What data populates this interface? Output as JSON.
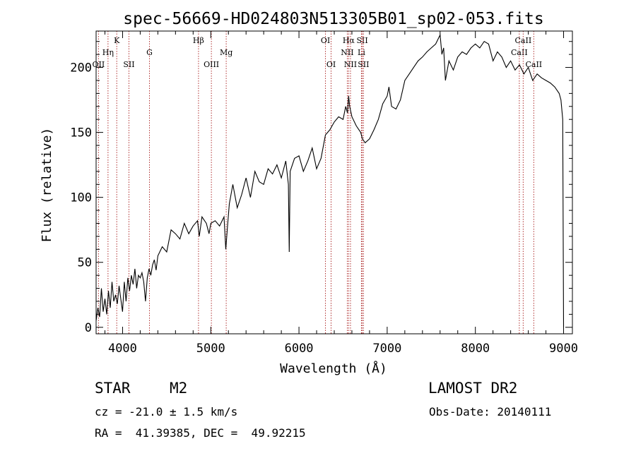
{
  "chart_data": {
    "type": "line",
    "title": "spec-56669-HD024803N513305B01_sp02-053.fits",
    "xlabel": "Wavelength (Å)",
    "ylabel": "Flux (relative)",
    "xlim": [
      3700,
      9100
    ],
    "ylim": [
      -5,
      228
    ],
    "x_ticks": [
      4000,
      5000,
      6000,
      7000,
      8000,
      9000
    ],
    "y_ticks": [
      0,
      50,
      100,
      150,
      200
    ],
    "grid": false,
    "line_color": "#000000",
    "marker_color": "#b03030",
    "spectral_lines": [
      {
        "label": "OII",
        "x": 3727,
        "row": 3
      },
      {
        "label": "Hη",
        "x": 3835,
        "row": 2
      },
      {
        "label": "K",
        "x": 3934,
        "row": 1
      },
      {
        "label": "SII",
        "x": 4072,
        "row": 3
      },
      {
        "label": "G",
        "x": 4305,
        "row": 2
      },
      {
        "label": "Hβ",
        "x": 4861,
        "row": 1
      },
      {
        "label": "OIII",
        "x": 5007,
        "row": 3
      },
      {
        "label": "Mg",
        "x": 5175,
        "row": 2
      },
      {
        "label": "OI",
        "x": 6300,
        "row": 1
      },
      {
        "label": "OI",
        "x": 6364,
        "row": 3
      },
      {
        "label": "Hα",
        "x": 6563,
        "row": 1
      },
      {
        "label": "NII",
        "x": 6548,
        "row": 2
      },
      {
        "label": "NII",
        "x": 6584,
        "row": 3
      },
      {
        "label": "SII",
        "x": 6717,
        "row": 1
      },
      {
        "label": "Li",
        "x": 6708,
        "row": 2
      },
      {
        "label": "SII",
        "x": 6731,
        "row": 3
      },
      {
        "label": "CaII",
        "x": 8498,
        "row": 2
      },
      {
        "label": "CaII",
        "x": 8542,
        "row": 1
      },
      {
        "label": "CaII",
        "x": 8662,
        "row": 3
      }
    ],
    "series": [
      {
        "x": [
          3700,
          3720,
          3740,
          3760,
          3780,
          3800,
          3820,
          3840,
          3860,
          3880,
          3900,
          3920,
          3940,
          3960,
          3980,
          4000,
          4020,
          4040,
          4060,
          4080,
          4100,
          4120,
          4140,
          4160,
          4180,
          4200,
          4220,
          4240,
          4260,
          4280,
          4300,
          4320,
          4340,
          4360,
          4380,
          4400,
          4450,
          4500,
          4550,
          4600,
          4650,
          4700,
          4750,
          4800,
          4850,
          4870,
          4900,
          4950,
          4980,
          5000,
          5050,
          5100,
          5150,
          5170,
          5190,
          5210,
          5250,
          5300,
          5350,
          5400,
          5450,
          5500,
          5550,
          5600,
          5650,
          5700,
          5750,
          5800,
          5850,
          5880,
          5890,
          5900,
          5950,
          6000,
          6050,
          6100,
          6150,
          6200,
          6250,
          6300,
          6350,
          6400,
          6450,
          6500,
          6530,
          6550,
          6563,
          6575,
          6600,
          6650,
          6700,
          6720,
          6750,
          6800,
          6850,
          6900,
          6950,
          7000,
          7020,
          7050,
          7100,
          7150,
          7200,
          7250,
          7300,
          7350,
          7400,
          7450,
          7500,
          7550,
          7600,
          7620,
          7640,
          7660,
          7700,
          7750,
          7800,
          7850,
          7900,
          7950,
          8000,
          8050,
          8100,
          8150,
          8200,
          8250,
          8300,
          8350,
          8400,
          8450,
          8500,
          8550,
          8600,
          8650,
          8700,
          8750,
          8800,
          8850,
          8900,
          8950,
          8970,
          8990,
          9000
        ],
        "values": [
          5,
          15,
          8,
          30,
          12,
          22,
          10,
          28,
          15,
          35,
          20,
          25,
          18,
          32,
          22,
          12,
          35,
          20,
          38,
          28,
          40,
          33,
          45,
          30,
          40,
          38,
          42,
          35,
          20,
          38,
          45,
          40,
          48,
          52,
          44,
          55,
          62,
          58,
          75,
          72,
          68,
          80,
          72,
          78,
          82,
          70,
          85,
          80,
          72,
          80,
          82,
          78,
          85,
          60,
          78,
          95,
          110,
          92,
          102,
          115,
          100,
          120,
          112,
          110,
          122,
          118,
          125,
          115,
          128,
          110,
          58,
          120,
          130,
          132,
          120,
          128,
          138,
          122,
          130,
          148,
          152,
          158,
          162,
          160,
          170,
          165,
          178,
          170,
          162,
          155,
          150,
          145,
          142,
          145,
          152,
          160,
          172,
          178,
          185,
          170,
          168,
          175,
          190,
          195,
          200,
          205,
          208,
          212,
          215,
          218,
          225,
          210,
          215,
          190,
          205,
          198,
          208,
          212,
          210,
          215,
          218,
          215,
          220,
          218,
          205,
          212,
          208,
          200,
          205,
          198,
          202,
          195,
          200,
          190,
          195,
          192,
          190,
          188,
          185,
          180,
          175,
          160,
          0
        ]
      }
    ]
  },
  "info": {
    "object_type": "STAR",
    "subclass": "M2",
    "survey": "LAMOST DR2",
    "cz": "cz = -21.0 ± 1.5 km/s",
    "obs_date": "Obs-Date: 20140111",
    "coords": "RA =  41.39385, DEC =  49.92215"
  }
}
